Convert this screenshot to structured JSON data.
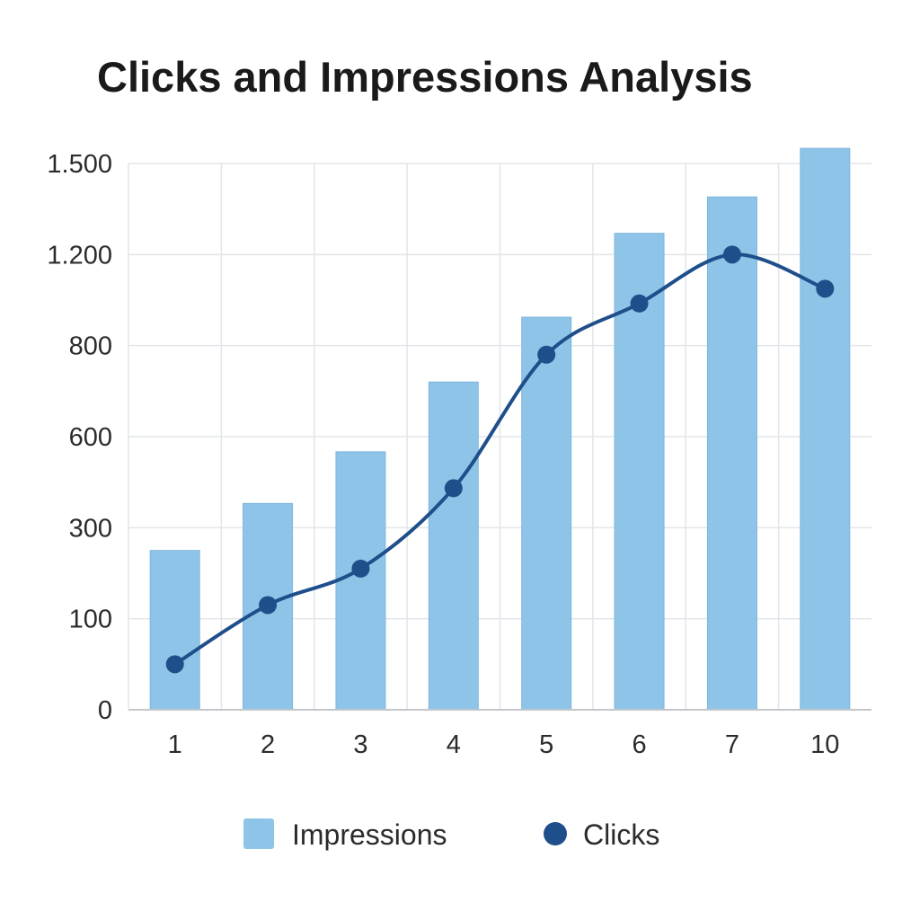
{
  "chart_data": {
    "type": "bar",
    "title": "Clicks and Impressions Analysis",
    "xlabel": "",
    "ylabel": "",
    "categories": [
      "1",
      "2",
      "3",
      "4",
      "5",
      "6",
      "7",
      "10"
    ],
    "y_ticks": [
      {
        "label": "0",
        "value": 0
      },
      {
        "label": "100",
        "value": 100
      },
      {
        "label": "300",
        "value": 300
      },
      {
        "label": "600",
        "value": 600
      },
      {
        "label": "800",
        "value": 800
      },
      {
        "label": "1.200",
        "value": 1200
      },
      {
        "label": "1.500",
        "value": 1500
      }
    ],
    "ylim": [
      0,
      1500
    ],
    "grid": true,
    "legend_position": "bottom",
    "series": [
      {
        "name": "Impressions",
        "type": "bar",
        "color": "#8ec4e8",
        "values": [
          250,
          380,
          550,
          720,
          925,
          1270,
          1390,
          1550
        ]
      },
      {
        "name": "Clicks",
        "type": "line",
        "color": "#1f4f8b",
        "values": [
          50,
          130,
          210,
          430,
          780,
          985,
          1200,
          1050
        ]
      }
    ]
  }
}
